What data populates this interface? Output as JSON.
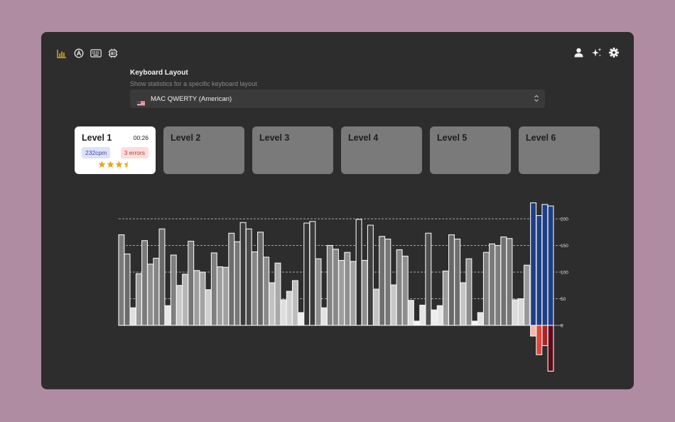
{
  "toolbar": {
    "left_icons": [
      "stats-icon",
      "typing-icon",
      "keyboard-icon",
      "ai-chip-icon"
    ],
    "right_icons": [
      "user-icon",
      "sparkles-icon",
      "gear-icon"
    ],
    "accent": "#e7a718"
  },
  "layout": {
    "title": "Keyboard Layout",
    "subtitle": "Show statistics for a specific keyboard layout",
    "selected": "MAC QWERTY (American)",
    "flag": "us-flag-icon"
  },
  "levels": [
    {
      "name": "Level 1",
      "time": "00:26",
      "cpm": "232cpm",
      "errors": "3 errors",
      "stars": 3.5,
      "active": true
    },
    {
      "name": "Level 2",
      "active": false
    },
    {
      "name": "Level 3",
      "active": false
    },
    {
      "name": "Level 4",
      "active": false
    },
    {
      "name": "Level 5",
      "active": false
    },
    {
      "name": "Level 6",
      "active": false
    }
  ],
  "chart_data": {
    "type": "bar",
    "y_ticks": [
      "200",
      "150",
      "100",
      "50",
      "0"
    ],
    "ylim": [
      0,
      225
    ],
    "grid": "dashed",
    "values": [
      170,
      134,
      33,
      97,
      159,
      115,
      126,
      181,
      37,
      132,
      75,
      96,
      158,
      103,
      100,
      67,
      136,
      110,
      109,
      173,
      157,
      193,
      181,
      138,
      175,
      128,
      80,
      117,
      48,
      64,
      84,
      24,
      192,
      195,
      125,
      33,
      150,
      143,
      122,
      137,
      120,
      199,
      122,
      188,
      68,
      167,
      162,
      76,
      142,
      130,
      47,
      8,
      38,
      173,
      29,
      37,
      102,
      170,
      162,
      80,
      125,
      8,
      24,
      137,
      153,
      150,
      166,
      163,
      48,
      50,
      113
    ],
    "fills": [
      "#7a7a7a",
      "#6a6a6a",
      "#e0e0e0",
      "#9a9a9a",
      "#7a7a7a",
      "#8f8f8f",
      "#858585",
      "#6a6a6a",
      "#e6e6e6",
      "#7f7f7f",
      "#c8c8c8",
      "#b5b5b5",
      "#757575",
      "#9f9f9f",
      "#a3a3a3",
      "#cfcfcf",
      "#7f7f7f",
      "#9d9d9d",
      "#a0a0a0",
      "#6d6d6d",
      "#777777",
      "#3a3a3a",
      "#4a4a4a",
      "#868686",
      "#6a6a6a",
      "#8a8a8a",
      "#c2c2c2",
      "#a9a9a9",
      "#dedede",
      "#d0d0d0",
      "#bdbdbd",
      "#efefef",
      "#333333",
      "#3a3a3a",
      "#8d8d8d",
      "#e3e3e3",
      "#838383",
      "#888888",
      "#9d9d9d",
      "#8f8f8f",
      "#9f9f9f",
      "#2f2f2f",
      "#8f8f8f",
      "#3f3f3f",
      "#c3c3c3",
      "#6f6f6f",
      "#767676",
      "#c8c8c8",
      "#848484",
      "#8e8e8e",
      "#dcdcdc",
      "#f7f7f7",
      "#e6e6e6",
      "#505050",
      "#ececec",
      "#e6e6e6",
      "#9c9c9c",
      "#676767",
      "#6f6f6f",
      "#c4c4c4",
      "#8d8d8d",
      "#f4f4f4",
      "#e3e3e3",
      "#838383",
      "#7a7a7a",
      "#7d7d7d",
      "#717171",
      "#767676",
      "#dcdcdc",
      "#d8d8d8",
      "#999999"
    ],
    "series": [
      {
        "name": "up",
        "color": "#1e3f83",
        "values": [
          230,
          206,
          227,
          224
        ]
      },
      {
        "name": "down",
        "colors": [
          "#f3b8a4",
          "#e0463b",
          "#a82424",
          "#5d0b18"
        ],
        "values": [
          20,
          55,
          38,
          86
        ]
      }
    ]
  }
}
